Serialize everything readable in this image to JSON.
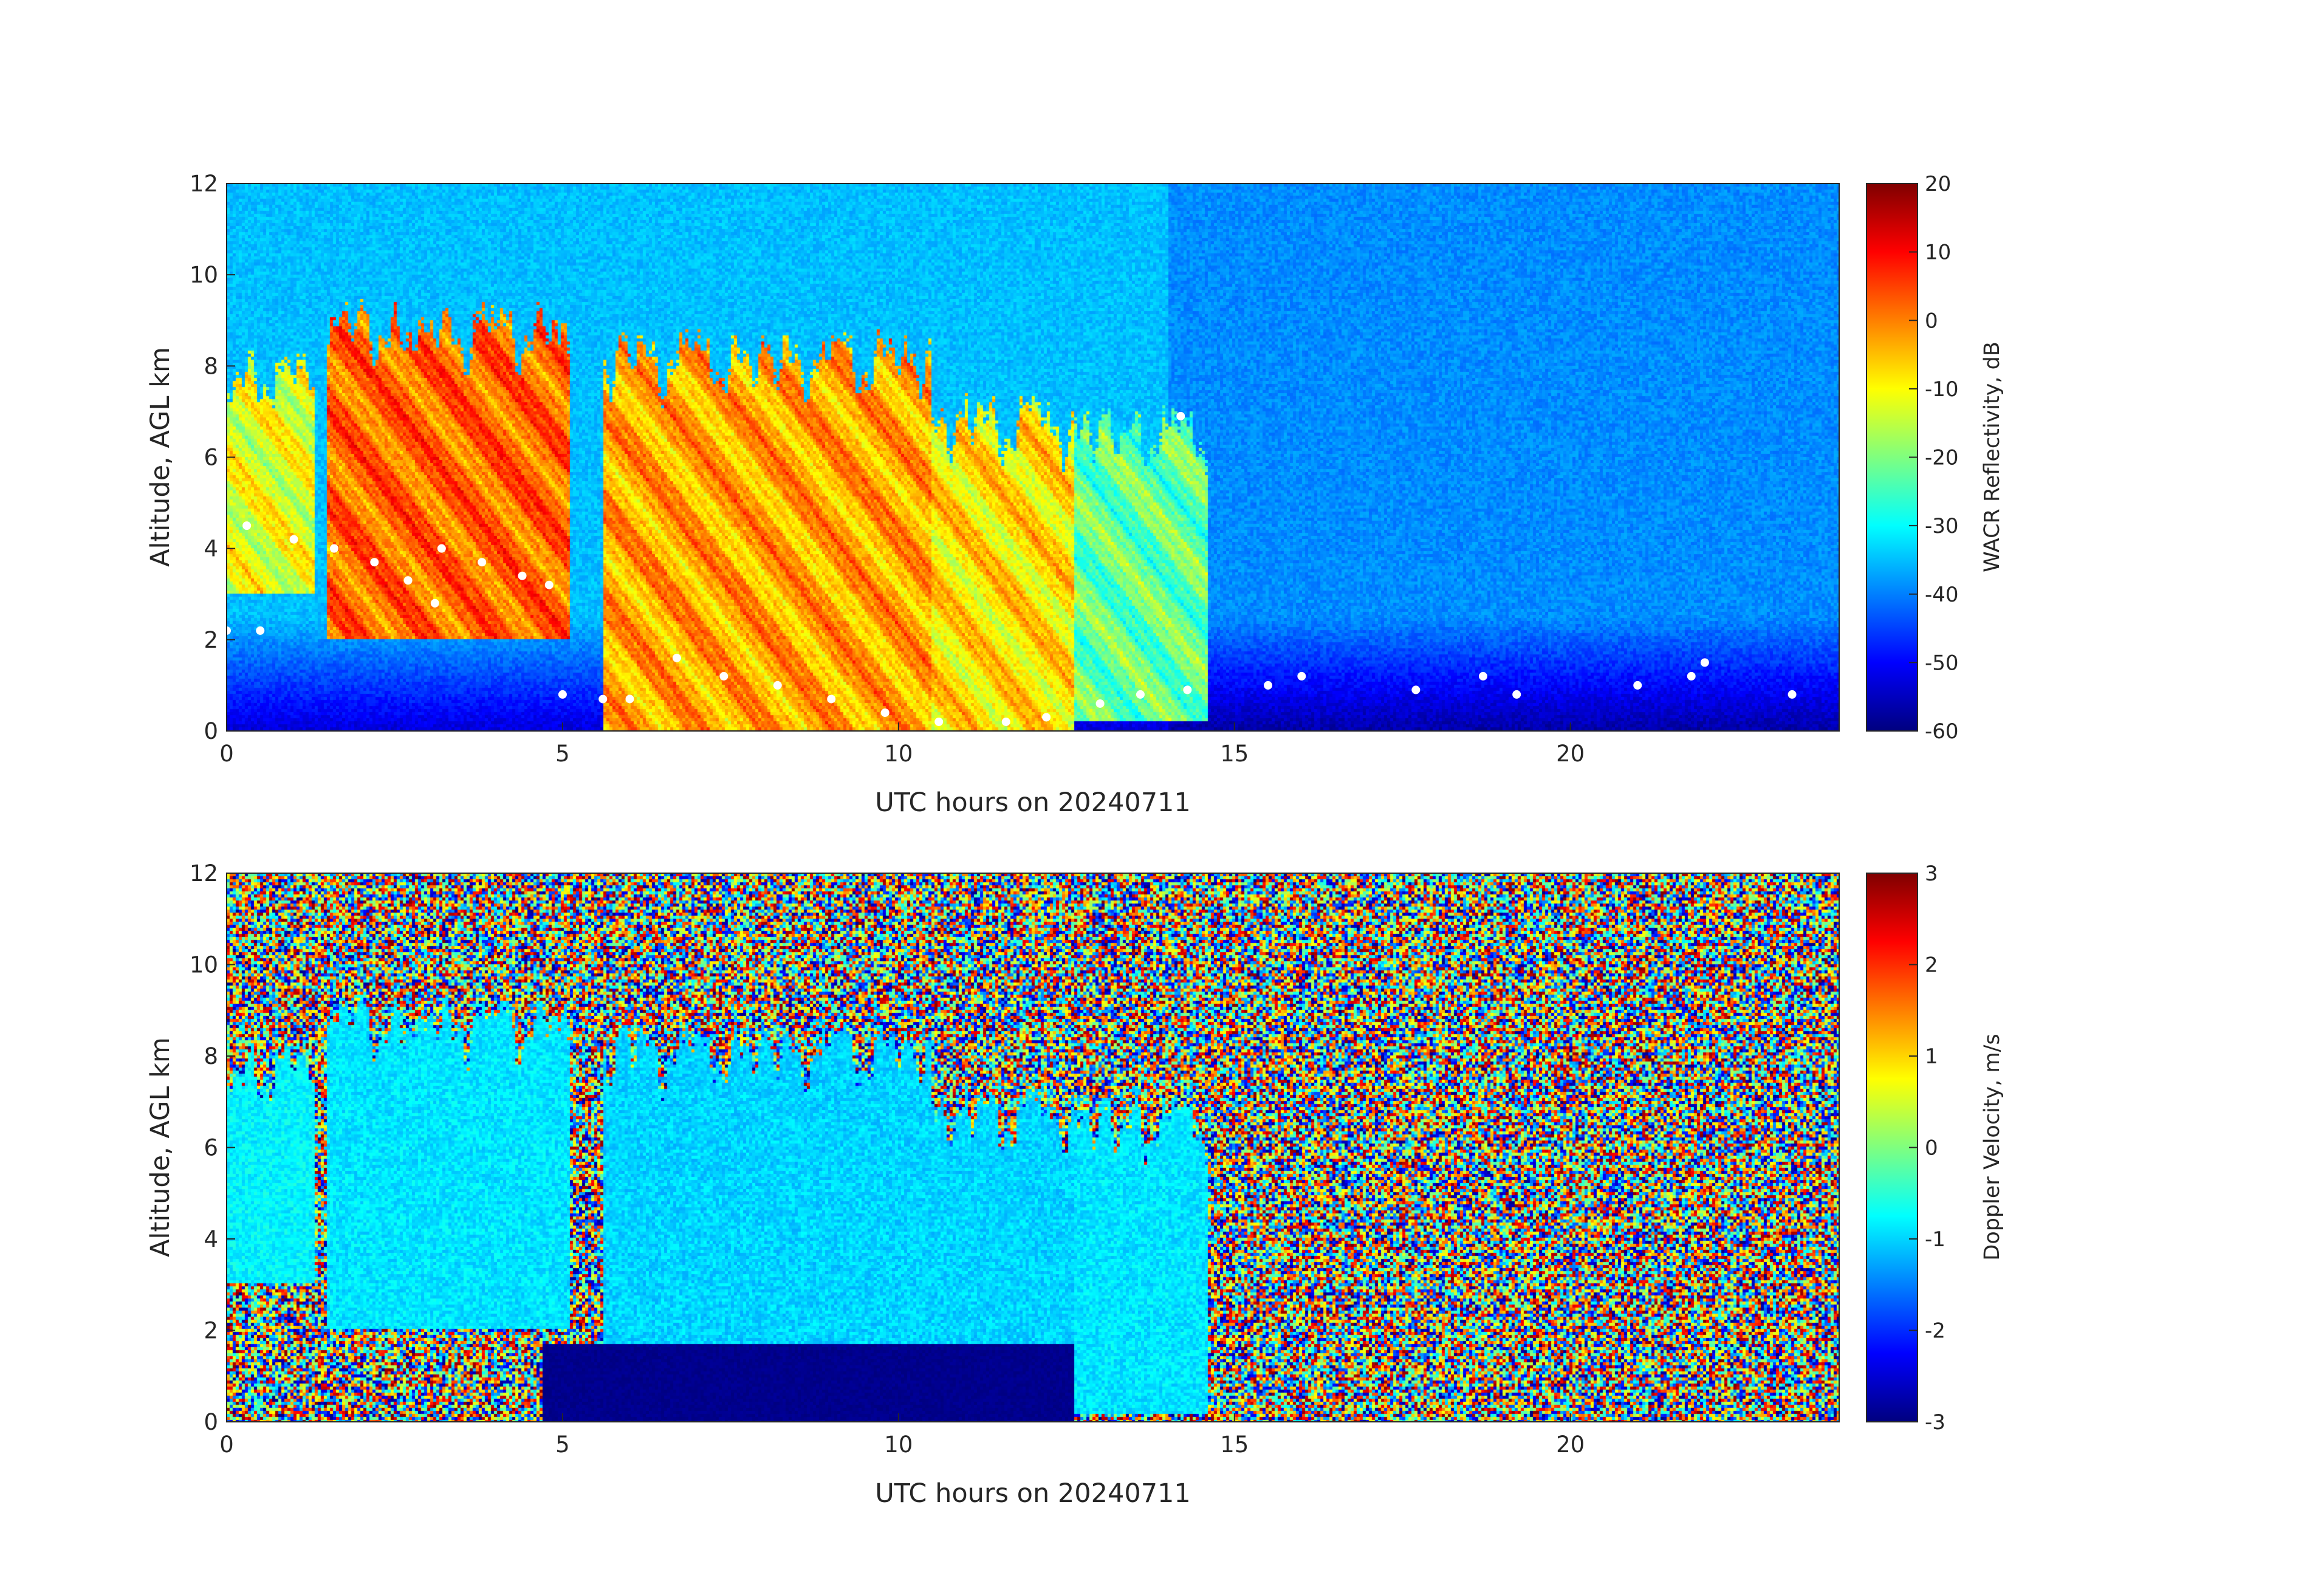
{
  "chart_data": [
    {
      "type": "heatmap",
      "xlabel": "UTC hours on 20240711",
      "ylabel": "Altitude, AGL km",
      "xlim": [
        0,
        24
      ],
      "ylim": [
        0,
        12
      ],
      "x_ticks": [
        "0",
        "5",
        "10",
        "15",
        "20"
      ],
      "y_ticks": [
        "0",
        "2",
        "4",
        "6",
        "8",
        "10",
        "12"
      ],
      "colorbar": {
        "label": "WACR Reflectivity, dB",
        "range": [
          -60,
          20
        ],
        "ticks": [
          "20",
          "10",
          "0",
          "-10",
          "-20",
          "-30",
          "-40",
          "-50",
          "-60"
        ],
        "colormap": "jet"
      },
      "background_value_db": -35,
      "cloud_segments": [
        {
          "t_start": 0.0,
          "t_end": 1.3,
          "base_km": 3.0,
          "top_km": 8.5,
          "value_db": -12
        },
        {
          "t_start": 1.5,
          "t_end": 5.1,
          "base_km": 2.0,
          "top_km": 9.5,
          "value_db": 2
        },
        {
          "t_start": 5.6,
          "t_end": 10.5,
          "base_km": 0.0,
          "top_km": 8.9,
          "value_db": -3
        },
        {
          "t_start": 10.5,
          "t_end": 12.6,
          "base_km": 0.0,
          "top_km": 7.5,
          "value_db": -8
        },
        {
          "t_start": 12.6,
          "t_end": 14.6,
          "base_km": 0.2,
          "top_km": 7.3,
          "value_db": -22
        }
      ],
      "cloud_base_points": [
        {
          "t": 0.0,
          "z": 2.2
        },
        {
          "t": 0.5,
          "z": 2.2
        },
        {
          "t": 0.3,
          "z": 4.5
        },
        {
          "t": 1.0,
          "z": 4.2
        },
        {
          "t": 1.6,
          "z": 4.0
        },
        {
          "t": 2.2,
          "z": 3.7
        },
        {
          "t": 2.7,
          "z": 3.3
        },
        {
          "t": 3.1,
          "z": 2.8
        },
        {
          "t": 3.2,
          "z": 4.0
        },
        {
          "t": 3.8,
          "z": 3.7
        },
        {
          "t": 4.4,
          "z": 3.4
        },
        {
          "t": 4.8,
          "z": 3.2
        },
        {
          "t": 5.0,
          "z": 0.8
        },
        {
          "t": 5.6,
          "z": 0.7
        },
        {
          "t": 6.0,
          "z": 0.7
        },
        {
          "t": 6.7,
          "z": 1.6
        },
        {
          "t": 7.4,
          "z": 1.2
        },
        {
          "t": 8.2,
          "z": 1.0
        },
        {
          "t": 9.0,
          "z": 0.7
        },
        {
          "t": 9.8,
          "z": 0.4
        },
        {
          "t": 10.6,
          "z": 0.2
        },
        {
          "t": 11.6,
          "z": 0.2
        },
        {
          "t": 12.2,
          "z": 0.3
        },
        {
          "t": 13.0,
          "z": 0.6
        },
        {
          "t": 13.6,
          "z": 0.8
        },
        {
          "t": 14.3,
          "z": 0.9
        },
        {
          "t": 14.2,
          "z": 6.9
        },
        {
          "t": 15.5,
          "z": 1.0
        },
        {
          "t": 16.0,
          "z": 1.2
        },
        {
          "t": 17.7,
          "z": 0.9
        },
        {
          "t": 18.7,
          "z": 1.2
        },
        {
          "t": 19.2,
          "z": 0.8
        },
        {
          "t": 21.0,
          "z": 1.0
        },
        {
          "t": 21.8,
          "z": 1.2
        },
        {
          "t": 22.0,
          "z": 1.5
        },
        {
          "t": 23.3,
          "z": 0.8
        }
      ]
    },
    {
      "type": "heatmap",
      "xlabel": "UTC hours on 20240711",
      "ylabel": "Altitude, AGL km",
      "xlim": [
        0,
        24
      ],
      "ylim": [
        0,
        12
      ],
      "x_ticks": [
        "0",
        "5",
        "10",
        "15",
        "20"
      ],
      "y_ticks": [
        "0",
        "2",
        "4",
        "6",
        "8",
        "10",
        "12"
      ],
      "colorbar": {
        "label": "Doppler Velocity, m/s",
        "range": [
          -3,
          3
        ],
        "ticks": [
          "3",
          "2",
          "1",
          "0",
          "-1",
          "-2",
          "-3"
        ],
        "colormap": "jet"
      },
      "background": "random noise",
      "cloud_segments": [
        {
          "t_start": 0.0,
          "t_end": 1.3,
          "base_km": 3.0,
          "top_km": 8.5,
          "value_ms": -0.8
        },
        {
          "t_start": 1.5,
          "t_end": 5.1,
          "base_km": 2.0,
          "top_km": 9.5,
          "value_ms": -0.9
        },
        {
          "t_start": 5.6,
          "t_end": 10.5,
          "base_km": 0.0,
          "top_km": 8.9,
          "value_ms": -1.0
        },
        {
          "t_start": 10.5,
          "t_end": 12.6,
          "base_km": 0.0,
          "top_km": 7.5,
          "value_ms": -1.0
        },
        {
          "t_start": 12.6,
          "t_end": 14.6,
          "base_km": 0.2,
          "top_km": 7.3,
          "value_ms": -0.9
        }
      ],
      "rain_layer": {
        "t_start": 4.7,
        "t_end": 12.6,
        "top_km": 1.7,
        "value_ms": -3.0
      }
    }
  ]
}
